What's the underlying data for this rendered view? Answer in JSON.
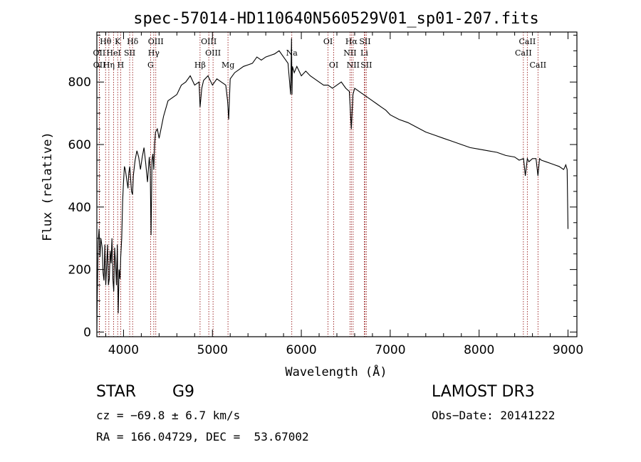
{
  "chart_data": {
    "type": "line",
    "title": "spec-57014-HD110640N560529V01_sp01-207.fits",
    "xlabel": "Wavelength (Å)",
    "ylabel": "Flux (relative)",
    "xlim": [
      3700,
      9100
    ],
    "ylim": [
      -15,
      960
    ],
    "xticks": [
      4000,
      5000,
      6000,
      7000,
      8000,
      9000
    ],
    "yticks": [
      0,
      200,
      400,
      600,
      800
    ],
    "series": [
      {
        "name": "spectrum",
        "x": [
          3700,
          3705,
          3715,
          3725,
          3735,
          3745,
          3760,
          3770,
          3780,
          3790,
          3800,
          3810,
          3820,
          3830,
          3840,
          3850,
          3860,
          3870,
          3880,
          3890,
          3900,
          3910,
          3920,
          3930,
          3940,
          3950,
          3960,
          3968,
          3980,
          3990,
          4000,
          4010,
          4020,
          4030,
          4040,
          4050,
          4060,
          4070,
          4080,
          4090,
          4101,
          4110,
          4130,
          4150,
          4170,
          4190,
          4210,
          4230,
          4250,
          4270,
          4290,
          4300,
          4310,
          4320,
          4330,
          4340,
          4350,
          4360,
          4380,
          4400,
          4450,
          4500,
          4550,
          4600,
          4650,
          4700,
          4750,
          4800,
          4850,
          4861,
          4880,
          4900,
          4950,
          5000,
          5050,
          5100,
          5150,
          5170,
          5183,
          5200,
          5250,
          5300,
          5350,
          5400,
          5450,
          5500,
          5550,
          5600,
          5650,
          5700,
          5750,
          5800,
          5850,
          5880,
          5890,
          5895,
          5900,
          5920,
          5950,
          6000,
          6050,
          6100,
          6150,
          6200,
          6250,
          6300,
          6350,
          6400,
          6450,
          6500,
          6540,
          6563,
          6580,
          6600,
          6650,
          6700,
          6750,
          6800,
          6850,
          6900,
          6950,
          7000,
          7100,
          7200,
          7300,
          7400,
          7500,
          7600,
          7700,
          7800,
          7900,
          8000,
          8100,
          8200,
          8300,
          8400,
          8450,
          8500,
          8520,
          8542,
          8560,
          8600,
          8640,
          8662,
          8680,
          8700,
          8750,
          8800,
          8850,
          8900,
          8950,
          8960,
          8975,
          8990,
          9000
        ],
        "y": [
          5,
          120,
          290,
          330,
          240,
          300,
          270,
          190,
          165,
          280,
          150,
          210,
          280,
          150,
          170,
          260,
          220,
          300,
          170,
          130,
          270,
          220,
          150,
          280,
          60,
          200,
          170,
          240,
          300,
          420,
          480,
          530,
          520,
          500,
          480,
          460,
          510,
          530,
          490,
          450,
          440,
          500,
          550,
          580,
          560,
          520,
          560,
          590,
          540,
          480,
          560,
          520,
          310,
          550,
          570,
          520,
          600,
          640,
          650,
          620,
          690,
          740,
          750,
          760,
          790,
          800,
          820,
          790,
          800,
          720,
          780,
          805,
          820,
          790,
          810,
          800,
          790,
          740,
          680,
          810,
          830,
          840,
          850,
          855,
          860,
          880,
          870,
          880,
          885,
          890,
          900,
          880,
          860,
          760,
          940,
          760,
          850,
          830,
          850,
          820,
          835,
          820,
          810,
          800,
          790,
          790,
          780,
          790,
          800,
          780,
          770,
          650,
          760,
          780,
          770,
          760,
          750,
          740,
          730,
          720,
          710,
          695,
          680,
          670,
          655,
          640,
          630,
          620,
          610,
          600,
          590,
          585,
          580,
          575,
          565,
          560,
          550,
          555,
          500,
          555,
          545,
          555,
          555,
          500,
          555,
          550,
          545,
          540,
          535,
          530,
          520,
          525,
          535,
          520,
          330
        ]
      }
    ],
    "line_marks": [
      {
        "label": "Hθ",
        "wl": 3798,
        "row": 1
      },
      {
        "label": "OII",
        "wl": 3727,
        "row": 2
      },
      {
        "label": "OII",
        "wl": 3729,
        "row": 3
      },
      {
        "label": "Hη",
        "wl": 3835,
        "row": 3
      },
      {
        "label": "HeI",
        "wl": 3889,
        "row": 2
      },
      {
        "label": "K",
        "wl": 3934,
        "row": 1
      },
      {
        "label": "SII",
        "wl": 4069,
        "row": 2
      },
      {
        "label": "H",
        "wl": 3968,
        "row": 3
      },
      {
        "label": "Hδ",
        "wl": 4102,
        "row": 1
      },
      {
        "label": "OIII",
        "wl": 4363,
        "row": 1
      },
      {
        "label": "Hγ",
        "wl": 4340,
        "row": 2
      },
      {
        "label": "G",
        "wl": 4304,
        "row": 3
      },
      {
        "label": "Hβ",
        "wl": 4861,
        "row": 3
      },
      {
        "label": "OIII",
        "wl": 4959,
        "row": 1
      },
      {
        "label": "OIII",
        "wl": 5007,
        "row": 2
      },
      {
        "label": "Mg",
        "wl": 5175,
        "row": 3
      },
      {
        "label": "Na",
        "wl": 5893,
        "row": 2
      },
      {
        "label": "OI",
        "wl": 6300,
        "row": 1
      },
      {
        "label": "OI",
        "wl": 6364,
        "row": 3
      },
      {
        "label": "Hα",
        "wl": 6563,
        "row": 1
      },
      {
        "label": "NII",
        "wl": 6548,
        "row": 2
      },
      {
        "label": "NII",
        "wl": 6583,
        "row": 3
      },
      {
        "label": "SII",
        "wl": 6716,
        "row": 1
      },
      {
        "label": "SII",
        "wl": 6731,
        "row": 3
      },
      {
        "label": "Li",
        "wl": 6708,
        "row": 2
      },
      {
        "label": "CaII",
        "wl": 8542,
        "row": 1
      },
      {
        "label": "CaII",
        "wl": 8498,
        "row": 2
      },
      {
        "label": "CaII",
        "wl": 8662,
        "row": 3
      }
    ],
    "grid": false,
    "line_color": "#000000",
    "mark_color": "#8b0000"
  },
  "info": {
    "class_label": "STAR",
    "subclass": "G9",
    "survey": "LAMOST DR3",
    "cz": "cz = −69.8 ± 6.7 km/s",
    "obs_date": "Obs−Date: 20141222",
    "coords": "RA = 166.04729, DEC =  53.67002"
  }
}
